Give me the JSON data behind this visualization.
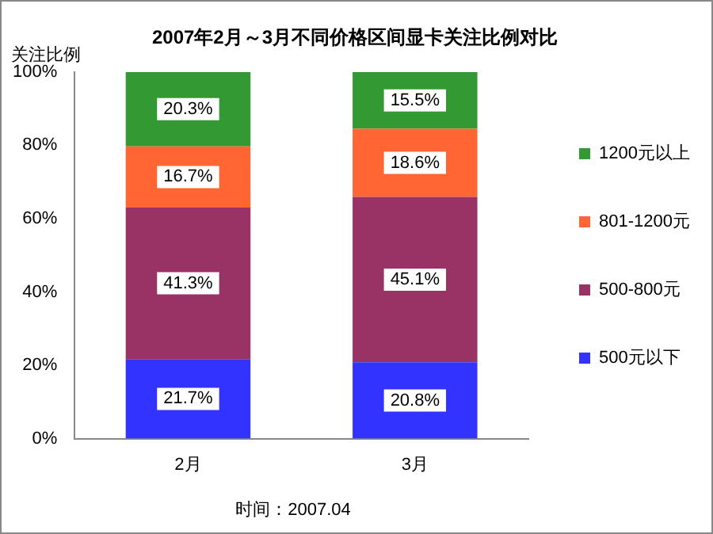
{
  "chart_data": {
    "type": "bar",
    "title": "2007年2月～3月不同价格区间显卡关注比例对比",
    "ylabel": "关注比例",
    "categories": [
      "2月",
      "3月"
    ],
    "stacked": true,
    "legend": "right",
    "grid": false,
    "ylim": [
      0,
      100
    ],
    "yticks": [
      {
        "value": 0,
        "label": "0%"
      },
      {
        "value": 20,
        "label": "20%"
      },
      {
        "value": 40,
        "label": "40%"
      },
      {
        "value": 60,
        "label": "60%"
      },
      {
        "value": 80,
        "label": "80%"
      },
      {
        "value": 100,
        "label": "100%"
      }
    ],
    "series": [
      {
        "name": "500元以下",
        "color": "#3333ff",
        "values": [
          21.7,
          20.8
        ],
        "value_labels": [
          "21.7%",
          "20.8%"
        ]
      },
      {
        "name": "500-800元",
        "color": "#993366",
        "values": [
          41.3,
          45.1
        ],
        "value_labels": [
          "41.3%",
          "45.1%"
        ]
      },
      {
        "name": "801-1200元",
        "color": "#ff6633",
        "values": [
          16.7,
          18.6
        ],
        "value_labels": [
          "16.7%",
          "18.6%"
        ]
      },
      {
        "name": "1200元以上",
        "color": "#339933",
        "values": [
          20.3,
          15.5
        ],
        "value_labels": [
          "20.3%",
          "15.5%"
        ]
      }
    ],
    "annotations": [
      "时间：2007.04"
    ]
  }
}
